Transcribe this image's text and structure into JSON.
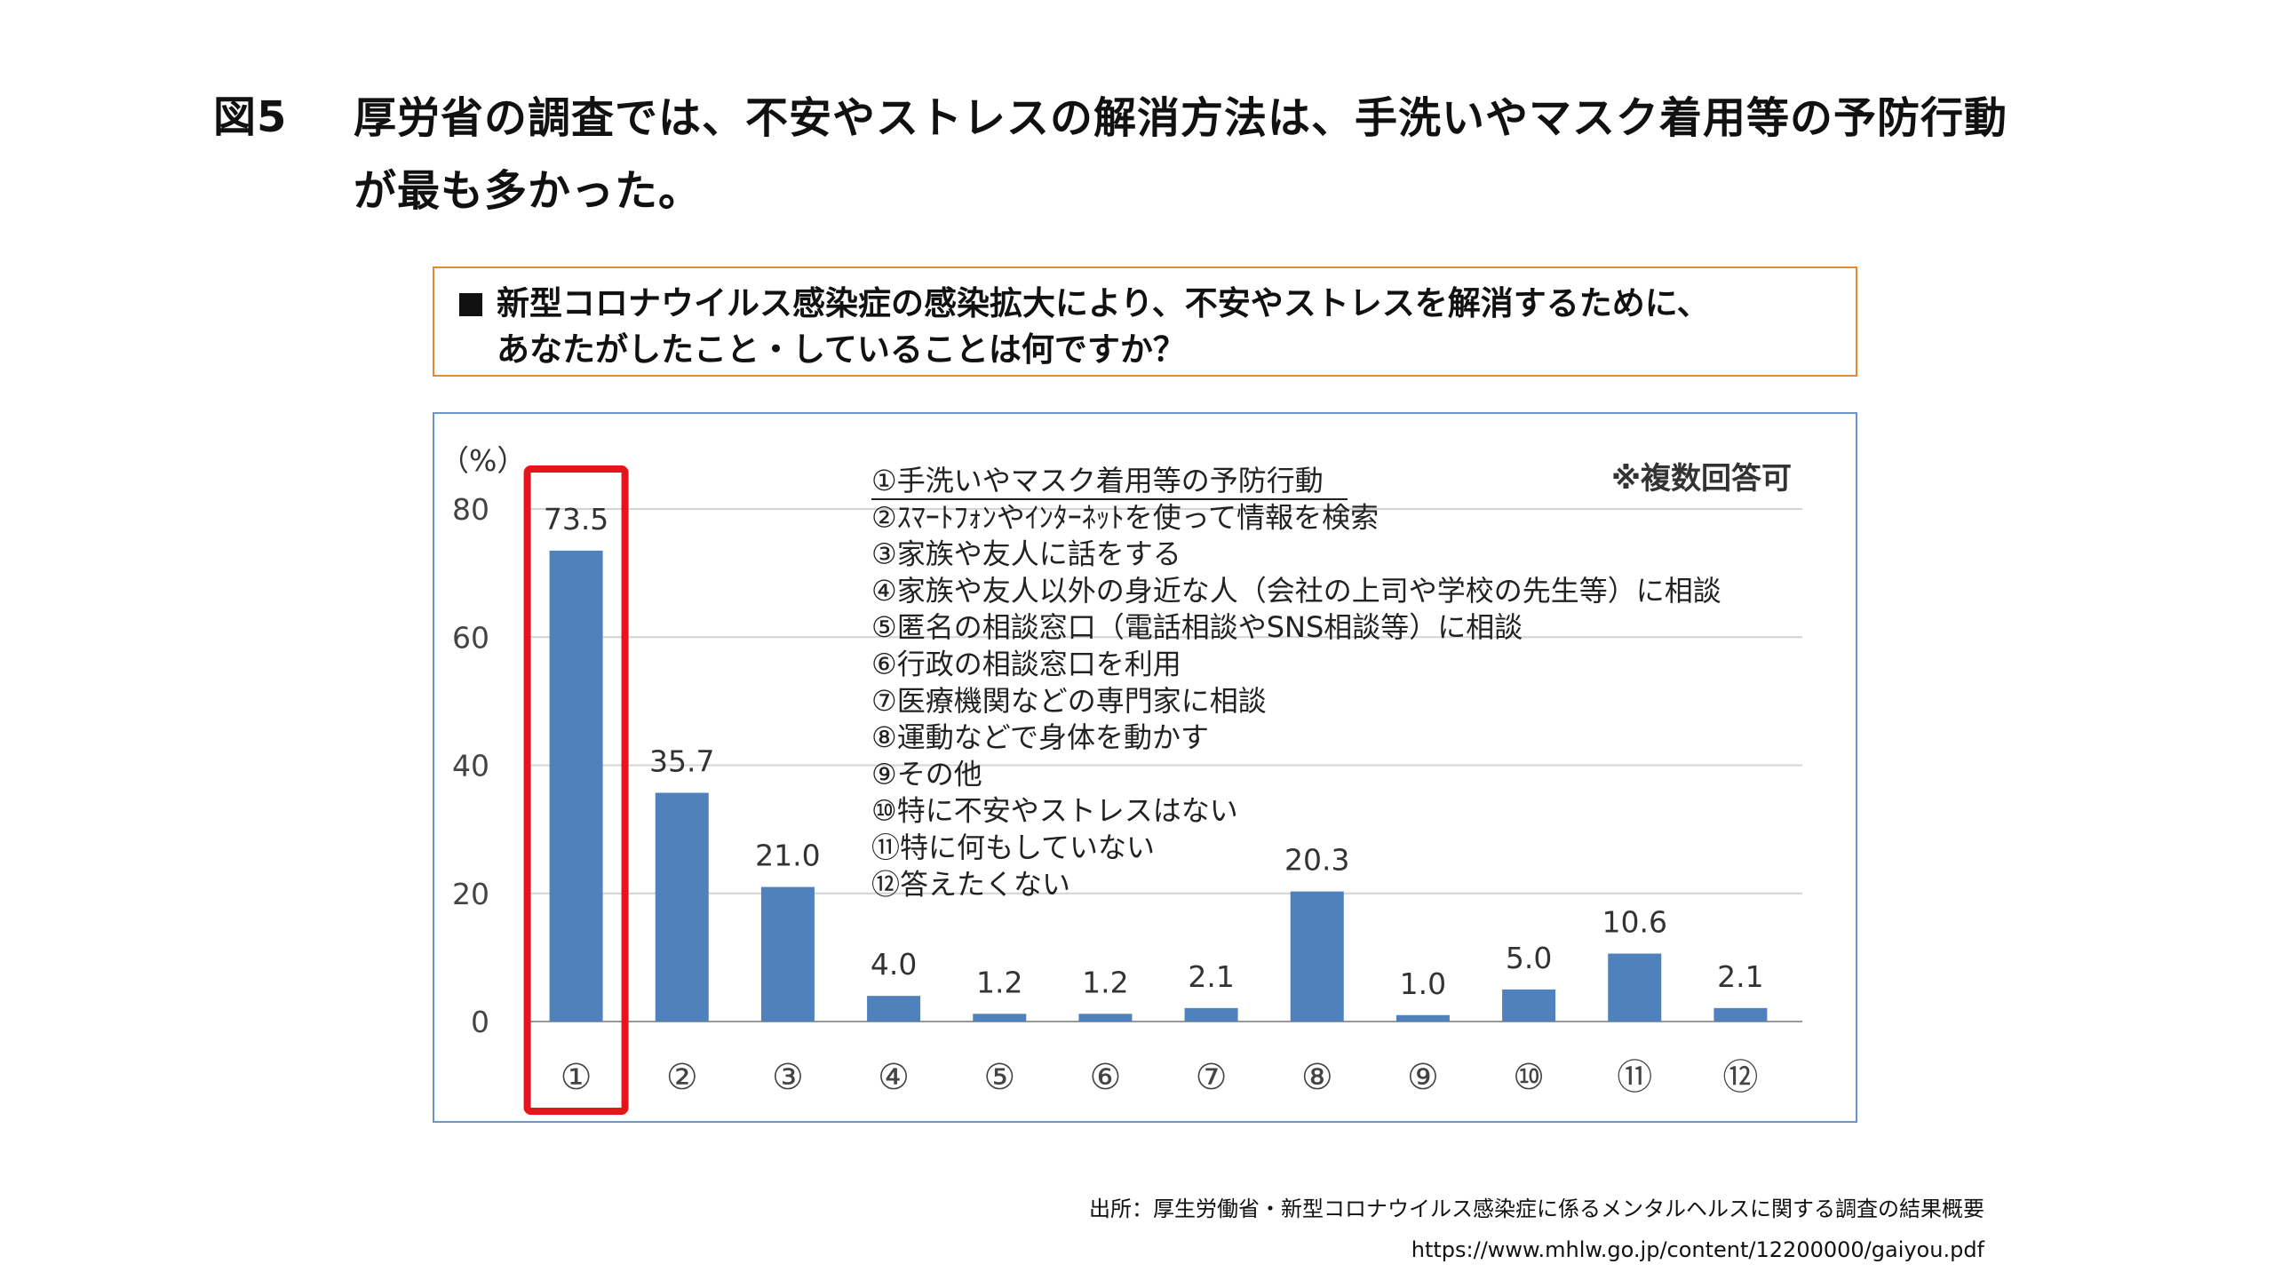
{
  "figure": {
    "label": "図5",
    "title": "厚労省の調査では、不安やストレスの解消方法は、手洗いやマスク着用等の予防行動が最も多かった。"
  },
  "question": {
    "line1": "新型コロナウイルス感染症の感染拡大により、不安やストレスを解消するために、",
    "line2": "あなたがしたこと・していることは何ですか？"
  },
  "chart_data": {
    "type": "bar",
    "categories": [
      "①",
      "②",
      "③",
      "④",
      "⑤",
      "⑥",
      "⑦",
      "⑧",
      "⑨",
      "⑩",
      "⑪",
      "⑫"
    ],
    "values": [
      73.5,
      35.7,
      21.0,
      4.0,
      1.2,
      1.2,
      2.1,
      20.3,
      1.0,
      5.0,
      10.6,
      2.1
    ],
    "value_labels": [
      "73.5",
      "35.7",
      "21.0",
      "4.0",
      "1.2",
      "1.2",
      "2.1",
      "20.3",
      "1.0",
      "5.0",
      "10.6",
      "2.1"
    ],
    "ylabel": "（%）",
    "yticks": [
      0,
      20,
      40,
      60,
      80
    ],
    "ylim": [
      0,
      80
    ],
    "grid": true,
    "note": "※複数回答可",
    "highlight_index": 0,
    "bar_color": "#4f81bd",
    "highlight_color": "#e8141b",
    "legend_items": [
      "①手洗いやマスク着用等の予防行動",
      "②ｽﾏｰﾄﾌｫﾝやｲﾝﾀｰﾈｯﾄを使って情報を検索",
      "③家族や友人に話をする",
      "④家族や友人以外の身近な人（会社の上司や学校の先生等）に相談",
      "⑤匿名の相談窓口（電話相談やSNS相談等）に相談",
      "⑥行政の相談窓口を利用",
      "⑦医療機関などの専門家に相談",
      "⑧運動などで身体を動かす",
      "⑨その他",
      "⑩特に不安やストレスはない",
      "⑪特に何もしていない",
      "⑫答えたくない"
    ]
  },
  "source": {
    "line1": "出所：厚生労働省・新型コロナウイルス感染症に係るメンタルヘルスに関する調査の結果概要",
    "line2": "https://www.mhlw.go.jp/content/12200000/gaiyou.pdf"
  }
}
